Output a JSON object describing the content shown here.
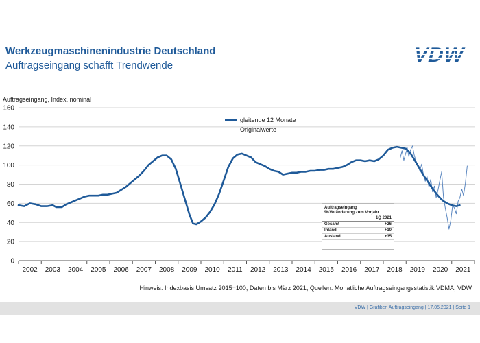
{
  "header": {
    "title": "Werkzeugmaschinenindustrie Deutschland",
    "subtitle": "Auftragseingang schafft Trendwende",
    "logo_text": "VDW"
  },
  "chart_data": {
    "type": "line",
    "ylabel": "Auftragseingang, Index, nominal",
    "ylim": [
      0,
      160
    ],
    "yticks": [
      0,
      20,
      40,
      60,
      80,
      100,
      120,
      140,
      160
    ],
    "xlim": [
      2001.5,
      2021.5
    ],
    "year_labels": [
      "2002",
      "2003",
      "2004",
      "2005",
      "2006",
      "2007",
      "2008",
      "2009",
      "2010",
      "2011",
      "2012",
      "2013",
      "2014",
      "2015",
      "2016",
      "2017",
      "2018",
      "2019",
      "2020",
      "2021"
    ],
    "grid": "horizontal",
    "legend_position": "top-center",
    "series": [
      {
        "name": "gleitende 12 Monate",
        "color": "#1f5a99",
        "points": [
          [
            2001.5,
            58
          ],
          [
            2001.75,
            57
          ],
          [
            2002.0,
            60
          ],
          [
            2002.25,
            59
          ],
          [
            2002.5,
            57
          ],
          [
            2002.75,
            57
          ],
          [
            2003.0,
            58
          ],
          [
            2003.15,
            56
          ],
          [
            2003.4,
            56
          ],
          [
            2003.6,
            59
          ],
          [
            2003.8,
            61
          ],
          [
            2004.0,
            63
          ],
          [
            2004.2,
            65
          ],
          [
            2004.4,
            67
          ],
          [
            2004.6,
            68
          ],
          [
            2004.8,
            68
          ],
          [
            2005.0,
            68
          ],
          [
            2005.2,
            69
          ],
          [
            2005.4,
            69
          ],
          [
            2005.6,
            70
          ],
          [
            2005.8,
            71
          ],
          [
            2006.0,
            74
          ],
          [
            2006.2,
            77
          ],
          [
            2006.4,
            81
          ],
          [
            2006.6,
            85
          ],
          [
            2006.8,
            89
          ],
          [
            2007.0,
            94
          ],
          [
            2007.2,
            100
          ],
          [
            2007.4,
            104
          ],
          [
            2007.6,
            108
          ],
          [
            2007.8,
            110
          ],
          [
            2008.0,
            110
          ],
          [
            2008.2,
            106
          ],
          [
            2008.4,
            96
          ],
          [
            2008.6,
            80
          ],
          [
            2008.8,
            64
          ],
          [
            2009.0,
            48
          ],
          [
            2009.15,
            39
          ],
          [
            2009.3,
            38
          ],
          [
            2009.5,
            41
          ],
          [
            2009.7,
            45
          ],
          [
            2009.9,
            51
          ],
          [
            2010.1,
            59
          ],
          [
            2010.3,
            70
          ],
          [
            2010.5,
            84
          ],
          [
            2010.7,
            98
          ],
          [
            2010.9,
            107
          ],
          [
            2011.1,
            111
          ],
          [
            2011.3,
            112
          ],
          [
            2011.5,
            110
          ],
          [
            2011.7,
            108
          ],
          [
            2011.9,
            103
          ],
          [
            2012.1,
            101
          ],
          [
            2012.3,
            99
          ],
          [
            2012.5,
            96
          ],
          [
            2012.7,
            94
          ],
          [
            2012.9,
            93
          ],
          [
            2013.1,
            90
          ],
          [
            2013.3,
            91
          ],
          [
            2013.5,
            92
          ],
          [
            2013.7,
            92
          ],
          [
            2013.9,
            93
          ],
          [
            2014.1,
            93
          ],
          [
            2014.3,
            94
          ],
          [
            2014.5,
            94
          ],
          [
            2014.7,
            95
          ],
          [
            2014.9,
            95
          ],
          [
            2015.1,
            96
          ],
          [
            2015.3,
            96
          ],
          [
            2015.5,
            97
          ],
          [
            2015.7,
            98
          ],
          [
            2015.9,
            100
          ],
          [
            2016.1,
            103
          ],
          [
            2016.3,
            105
          ],
          [
            2016.5,
            105
          ],
          [
            2016.7,
            104
          ],
          [
            2016.9,
            105
          ],
          [
            2017.1,
            104
          ],
          [
            2017.3,
            106
          ],
          [
            2017.5,
            110
          ],
          [
            2017.7,
            116
          ],
          [
            2017.9,
            118
          ],
          [
            2018.1,
            119
          ],
          [
            2018.3,
            118
          ],
          [
            2018.5,
            117
          ],
          [
            2018.7,
            112
          ],
          [
            2018.9,
            104
          ],
          [
            2019.1,
            96
          ],
          [
            2019.3,
            88
          ],
          [
            2019.5,
            81
          ],
          [
            2019.7,
            74
          ],
          [
            2019.9,
            68
          ],
          [
            2020.1,
            63
          ],
          [
            2020.3,
            60
          ],
          [
            2020.5,
            58
          ],
          [
            2020.7,
            57
          ],
          [
            2020.85,
            58
          ]
        ]
      },
      {
        "name": "Originalwerte",
        "color": "#5b87c0",
        "points": [
          [
            2018.25,
            108
          ],
          [
            2018.32,
            115
          ],
          [
            2018.4,
            105
          ],
          [
            2018.48,
            112
          ],
          [
            2018.55,
            118
          ],
          [
            2018.62,
            109
          ],
          [
            2018.7,
            116
          ],
          [
            2018.78,
            120
          ],
          [
            2018.86,
            110
          ],
          [
            2018.94,
            104
          ],
          [
            2019.02,
            99
          ],
          [
            2019.1,
            94
          ],
          [
            2019.18,
            101
          ],
          [
            2019.26,
            90
          ],
          [
            2019.34,
            83
          ],
          [
            2019.42,
            88
          ],
          [
            2019.5,
            77
          ],
          [
            2019.58,
            85
          ],
          [
            2019.66,
            72
          ],
          [
            2019.74,
            78
          ],
          [
            2019.82,
            66
          ],
          [
            2019.9,
            74
          ],
          [
            2019.98,
            84
          ],
          [
            2020.06,
            93
          ],
          [
            2020.14,
            66
          ],
          [
            2020.22,
            55
          ],
          [
            2020.3,
            45
          ],
          [
            2020.38,
            33
          ],
          [
            2020.46,
            42
          ],
          [
            2020.54,
            58
          ],
          [
            2020.62,
            55
          ],
          [
            2020.7,
            49
          ],
          [
            2020.78,
            62
          ],
          [
            2020.86,
            66
          ],
          [
            2020.94,
            75
          ],
          [
            2021.02,
            68
          ],
          [
            2021.1,
            81
          ],
          [
            2021.18,
            99
          ]
        ]
      }
    ]
  },
  "yoy_table": {
    "heading": "Auftragseingang",
    "subheading": "%-Veränderung zum Vorjahr",
    "period": "1Q 2021",
    "rows": [
      {
        "label": "Gesamt",
        "value": "+26"
      },
      {
        "label": "Inland",
        "value": "+10"
      },
      {
        "label": "Ausland",
        "value": "+35"
      }
    ]
  },
  "note": "Hinweis: Indexbasis Umsatz 2015=100, Daten bis März 2021, Quellen: Monatliche Auftragseingangsstatistik VDMA, VDW",
  "footer": "VDW  |  Grafiken Auftragseingang  |  17.05.2021  |  Seite  1"
}
